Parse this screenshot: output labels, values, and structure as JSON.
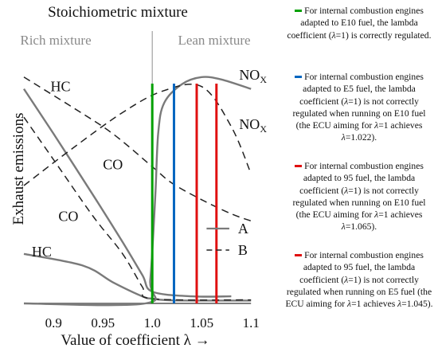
{
  "chart_data": {
    "type": "line",
    "title": "Stoichiometric mixture",
    "region_labels": {
      "rich": "Rich mixture",
      "lean": "Lean mixture"
    },
    "xlabel": "Value of coefficient λ →",
    "ylabel": "Exhaust emissions",
    "xlim": [
      0.87,
      1.12
    ],
    "ylim": [
      0,
      1
    ],
    "x_ticks": [
      {
        "value": 0.9,
        "label": "0.9"
      },
      {
        "value": 0.95,
        "label": "0.95"
      },
      {
        "value": 1.0,
        "label": "1.0"
      },
      {
        "value": 1.05,
        "label": "1.05"
      },
      {
        "value": 1.1,
        "label": "1.1"
      }
    ],
    "grid": false,
    "series": [
      {
        "name": "HC",
        "style": "dashed",
        "x": [
          0.87,
          0.92,
          0.96,
          1.0,
          1.02,
          1.05,
          1.08,
          1.1
        ],
        "y": [
          0.96,
          0.83,
          0.72,
          0.58,
          0.51,
          0.44,
          0.38,
          0.35
        ]
      },
      {
        "name": "HC",
        "style": "solid",
        "x": [
          0.87,
          0.93,
          0.96,
          0.99,
          1.0,
          1.02,
          1.08,
          1.1
        ],
        "y": [
          0.21,
          0.16,
          0.09,
          0.03,
          0.02,
          0.013,
          0.012,
          0.012
        ]
      },
      {
        "name": "CO",
        "style": "solid",
        "x": [
          0.87,
          0.9,
          0.94,
          0.97,
          0.99,
          1.0,
          1.04,
          1.08
        ],
        "y": [
          0.91,
          0.72,
          0.46,
          0.26,
          0.12,
          0.05,
          0.03,
          0.03
        ]
      },
      {
        "name": "CO",
        "style": "dashed",
        "x": [
          0.87,
          0.9,
          0.94,
          0.97,
          0.99,
          1.0,
          1.1
        ],
        "y": [
          0.79,
          0.61,
          0.37,
          0.21,
          0.07,
          0.02,
          0.015
        ]
      },
      {
        "name": "NOX",
        "style": "solid",
        "x": [
          0.87,
          0.993,
          0.998,
          1.003,
          1.006,
          1.012,
          1.03,
          1.05,
          1.07,
          1.1
        ],
        "y": [
          0.0,
          0.0,
          0.1,
          0.45,
          0.72,
          0.85,
          0.93,
          0.96,
          0.95,
          0.91
        ]
      },
      {
        "name": "NOX",
        "style": "dashed",
        "x": [
          0.87,
          0.92,
          0.97,
          1.01,
          1.05,
          1.08,
          1.1
        ],
        "y": [
          0.5,
          0.66,
          0.81,
          0.9,
          0.92,
          0.75,
          0.55
        ]
      }
    ],
    "curve_labels": [
      {
        "text": "HC",
        "x": 0.897,
        "y": 0.9
      },
      {
        "text": "CO",
        "x": 0.95,
        "y": 0.57
      },
      {
        "text": "CO",
        "x": 0.905,
        "y": 0.35
      },
      {
        "text": "HC",
        "x": 0.878,
        "y": 0.2
      },
      {
        "text": "NO",
        "sub": "X",
        "x": 1.088,
        "y": 0.95
      },
      {
        "text": "NO",
        "sub": "X",
        "x": 1.088,
        "y": 0.74
      }
    ],
    "line_key": [
      {
        "label": "A",
        "style": "solid"
      },
      {
        "label": "B",
        "style": "dashed"
      }
    ],
    "reference_lines": [
      {
        "x": 1.0,
        "color": "#00a000",
        "text": "For internal combustion engines adapted to E10 fuel, the lambda coefficient (λ=1) is correctly regulated."
      },
      {
        "x": 1.022,
        "color": "#0066c0",
        "text": "For internal combustion engines adapted to E5 fuel, the lambda coefficient (λ=1) is not correctly regulated when running on E10 fuel (the ECU aiming for λ=1 achieves λ=1.022)."
      },
      {
        "x": 1.065,
        "color": "#e01010",
        "text": "For internal combustion engines adapted to 95 fuel, the lambda coefficient (λ=1) is not correctly regulated when running on E10 fuel (the ECU aiming for λ=1 achieves λ=1.065)."
      },
      {
        "x": 1.045,
        "color": "#e01010",
        "text": "For internal combustion engines adapted to 95 fuel, the lambda coefficient (λ=1) is not correctly regulated when running on E5 fuel (the ECU aiming for λ=1 achieves λ=1.045)."
      }
    ]
  }
}
